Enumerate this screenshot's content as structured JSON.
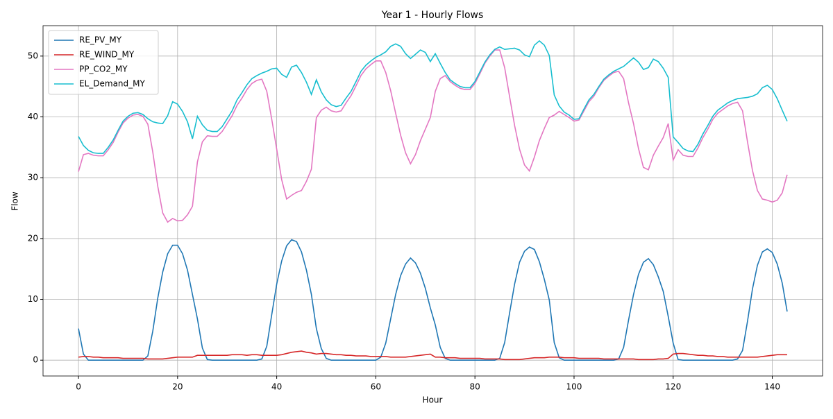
{
  "chart_data": {
    "type": "line",
    "title": "Year 1 - Hourly Flows",
    "x_label": "Hour",
    "y_label": "Flow",
    "x": [
      0,
      1,
      2,
      3,
      4,
      5,
      6,
      7,
      8,
      9,
      10,
      11,
      12,
      13,
      14,
      15,
      16,
      17,
      18,
      19,
      20,
      21,
      22,
      23,
      24,
      25,
      26,
      27,
      28,
      29,
      30,
      31,
      32,
      33,
      34,
      35,
      36,
      37,
      38,
      39,
      40,
      41,
      42,
      43,
      44,
      45,
      46,
      47,
      48,
      49,
      50,
      51,
      52,
      53,
      54,
      55,
      56,
      57,
      58,
      59,
      60,
      61,
      62,
      63,
      64,
      65,
      66,
      67,
      68,
      69,
      70,
      71,
      72,
      73,
      74,
      75,
      76,
      77,
      78,
      79,
      80,
      81,
      82,
      83,
      84,
      85,
      86,
      87,
      88,
      89,
      90,
      91,
      92,
      93,
      94,
      95,
      96,
      97,
      98,
      99,
      100,
      101,
      102,
      103,
      104,
      105,
      106,
      107,
      108,
      109,
      110,
      111,
      112,
      113,
      114,
      115,
      116,
      117,
      118,
      119,
      120,
      121,
      122,
      123,
      124,
      125,
      126,
      127,
      128,
      129,
      130,
      131,
      132,
      133,
      134,
      135,
      136,
      137,
      138,
      139,
      140,
      141,
      142,
      143
    ],
    "series": [
      {
        "name": "RE_PV_MY",
        "color": "#1f77b4",
        "values": [
          5.2,
          1.0,
          0,
          0,
          0,
          0,
          0,
          0,
          0,
          0,
          0,
          0,
          0,
          0,
          0.7,
          4.8,
          10.2,
          14.5,
          17.5,
          18.9,
          18.9,
          17.5,
          14.8,
          10.8,
          6.8,
          2.0,
          0.1,
          0,
          0,
          0,
          0,
          0,
          0,
          0,
          0,
          0,
          0,
          0.2,
          2.3,
          7.5,
          12.5,
          16.3,
          18.8,
          19.8,
          19.5,
          17.8,
          14.8,
          10.8,
          5.2,
          1.9,
          0.3,
          0,
          0,
          0,
          0,
          0,
          0,
          0,
          0,
          0,
          0,
          0.5,
          2.8,
          6.8,
          10.8,
          13.9,
          15.8,
          16.8,
          16.0,
          14.3,
          11.8,
          8.6,
          5.8,
          2.1,
          0.3,
          0,
          0,
          0,
          0,
          0,
          0,
          0,
          0,
          0,
          0,
          0.3,
          2.9,
          7.8,
          12.5,
          16.1,
          17.9,
          18.6,
          18.2,
          16.2,
          13.3,
          9.9,
          2.9,
          0.4,
          0,
          0,
          0,
          0,
          0,
          0,
          0,
          0,
          0,
          0,
          0,
          0.2,
          2.1,
          6.6,
          10.8,
          14.1,
          16.1,
          16.7,
          15.7,
          13.7,
          11.3,
          7.2,
          2.8,
          0.1,
          0,
          0,
          0,
          0,
          0,
          0,
          0,
          0,
          0,
          0,
          0,
          0.2,
          1.6,
          6.4,
          11.7,
          15.6,
          17.8,
          18.3,
          17.7,
          15.8,
          12.7,
          8.0
        ]
      },
      {
        "name": "RE_WIND_MY",
        "color": "#d62728",
        "values": [
          0.5,
          0.6,
          0.6,
          0.5,
          0.5,
          0.4,
          0.4,
          0.4,
          0.4,
          0.3,
          0.3,
          0.3,
          0.3,
          0.3,
          0.2,
          0.2,
          0.2,
          0.2,
          0.3,
          0.4,
          0.5,
          0.5,
          0.5,
          0.5,
          0.8,
          0.8,
          0.8,
          0.8,
          0.8,
          0.8,
          0.8,
          0.9,
          0.9,
          0.9,
          0.8,
          0.9,
          0.9,
          0.8,
          0.8,
          0.8,
          0.8,
          0.9,
          1.1,
          1.3,
          1.4,
          1.5,
          1.3,
          1.2,
          1.0,
          1.1,
          1.1,
          1.0,
          0.9,
          0.9,
          0.8,
          0.8,
          0.7,
          0.7,
          0.7,
          0.6,
          0.6,
          0.6,
          0.6,
          0.5,
          0.5,
          0.5,
          0.5,
          0.6,
          0.7,
          0.8,
          0.9,
          1.0,
          0.5,
          0.5,
          0.4,
          0.4,
          0.4,
          0.3,
          0.3,
          0.3,
          0.3,
          0.3,
          0.2,
          0.2,
          0.2,
          0.2,
          0.1,
          0.1,
          0.1,
          0.1,
          0.2,
          0.3,
          0.4,
          0.4,
          0.4,
          0.5,
          0.5,
          0.5,
          0.4,
          0.4,
          0.4,
          0.3,
          0.3,
          0.3,
          0.3,
          0.3,
          0.2,
          0.2,
          0.2,
          0.2,
          0.2,
          0.2,
          0.2,
          0.1,
          0.1,
          0.1,
          0.1,
          0.2,
          0.2,
          0.3,
          1.0,
          1.1,
          1.1,
          1.0,
          0.9,
          0.8,
          0.8,
          0.7,
          0.7,
          0.6,
          0.6,
          0.5,
          0.5,
          0.5,
          0.5,
          0.5,
          0.5,
          0.5,
          0.6,
          0.7,
          0.8,
          0.9,
          0.9,
          0.9
        ]
      },
      {
        "name": "PP_CO2_MY",
        "color": "#e377c2",
        "values": [
          31.0,
          33.8,
          34.0,
          33.7,
          33.6,
          33.6,
          34.6,
          35.8,
          37.5,
          39.0,
          39.8,
          40.3,
          40.4,
          40.1,
          38.8,
          34.2,
          28.6,
          24.2,
          22.7,
          23.3,
          22.9,
          23.0,
          23.9,
          25.3,
          32.6,
          35.9,
          36.9,
          36.8,
          36.8,
          37.6,
          38.9,
          40.2,
          41.9,
          43.1,
          44.5,
          45.5,
          46.0,
          46.2,
          44.2,
          39.6,
          34.7,
          29.7,
          26.5,
          27.1,
          27.6,
          27.9,
          29.4,
          31.4,
          39.9,
          41.1,
          41.6,
          41.0,
          40.8,
          41.0,
          42.3,
          43.5,
          45.1,
          46.8,
          47.9,
          48.6,
          49.2,
          49.2,
          47.3,
          44.3,
          40.6,
          37.0,
          34.1,
          32.3,
          33.8,
          36.1,
          38.0,
          39.9,
          44.2,
          46.3,
          46.8,
          45.8,
          45.2,
          44.7,
          44.5,
          44.5,
          45.5,
          47.1,
          48.8,
          50.0,
          51.0,
          51.0,
          48.1,
          43.3,
          38.6,
          34.7,
          32.1,
          31.1,
          33.4,
          36.1,
          38.1,
          39.9,
          40.3,
          40.9,
          40.4,
          39.9,
          39.3,
          39.5,
          41.0,
          42.5,
          43.4,
          44.8,
          46.0,
          46.7,
          47.3,
          47.5,
          46.3,
          42.3,
          38.9,
          34.8,
          31.7,
          31.3,
          33.7,
          35.2,
          36.6,
          38.9,
          32.9,
          34.6,
          33.7,
          33.5,
          33.5,
          34.9,
          36.6,
          38.0,
          39.6,
          40.6,
          41.2,
          41.8,
          42.2,
          42.4,
          41.0,
          35.9,
          31.2,
          27.9,
          26.5,
          26.3,
          26.0,
          26.3,
          27.5,
          30.5
        ]
      },
      {
        "name": "EL_Demand_MY",
        "color": "#17becf",
        "values": [
          36.8,
          35.3,
          34.5,
          34.1,
          34.0,
          34.0,
          35.0,
          36.2,
          37.8,
          39.3,
          40.1,
          40.6,
          40.7,
          40.4,
          39.7,
          39.2,
          39.0,
          38.9,
          40.2,
          42.5,
          42.1,
          40.9,
          39.2,
          36.4,
          40.1,
          38.7,
          37.8,
          37.6,
          37.6,
          38.4,
          39.7,
          41.0,
          42.8,
          44.0,
          45.3,
          46.3,
          46.8,
          47.2,
          47.5,
          47.9,
          48.0,
          47.0,
          46.5,
          48.2,
          48.5,
          47.3,
          45.7,
          43.7,
          46.1,
          44.1,
          42.8,
          42.0,
          41.7,
          41.9,
          43.1,
          44.2,
          45.8,
          47.5,
          48.5,
          49.2,
          49.8,
          50.2,
          50.7,
          51.6,
          52.0,
          51.6,
          50.4,
          49.6,
          50.3,
          51.0,
          50.6,
          49.1,
          50.4,
          48.8,
          47.3,
          46.1,
          45.5,
          45.0,
          44.8,
          44.8,
          45.8,
          47.4,
          49.0,
          50.2,
          51.1,
          51.5,
          51.1,
          51.2,
          51.3,
          51.0,
          50.2,
          49.9,
          51.8,
          52.5,
          51.8,
          50.1,
          43.6,
          41.8,
          40.8,
          40.3,
          39.6,
          39.7,
          41.3,
          42.8,
          43.7,
          45.0,
          46.2,
          46.9,
          47.5,
          47.9,
          48.3,
          49.0,
          49.7,
          49.0,
          47.8,
          48.1,
          49.5,
          49.1,
          48.0,
          46.5,
          36.7,
          35.8,
          34.8,
          34.4,
          34.3,
          35.5,
          37.2,
          38.6,
          40.1,
          41.1,
          41.7,
          42.3,
          42.7,
          43.0,
          43.1,
          43.2,
          43.4,
          43.8,
          44.8,
          45.2,
          44.5,
          43.0,
          41.1,
          39.3
        ]
      }
    ],
    "xlim": [
      -7.15,
      150.15
    ],
    "xticks": [
      0,
      20,
      40,
      60,
      80,
      100,
      120,
      140
    ],
    "ylim": [
      -2.6,
      55.0
    ],
    "yticks": [
      0,
      10,
      20,
      30,
      40,
      50
    ],
    "grid": true,
    "legend": "upper-left"
  }
}
